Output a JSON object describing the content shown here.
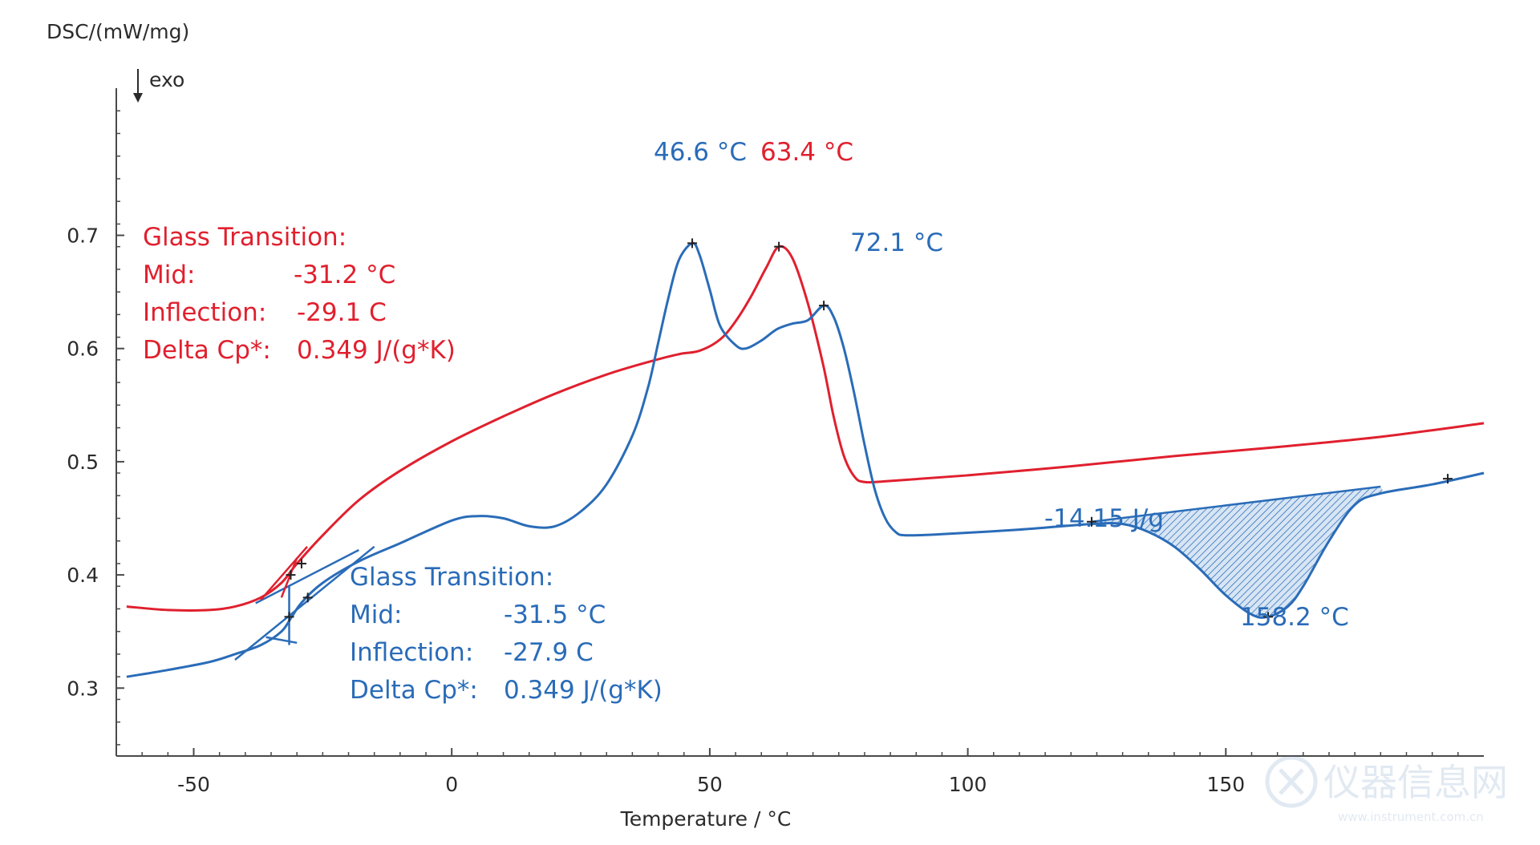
{
  "chart_data": {
    "type": "line",
    "ylabel": "DSC/(mW/mg)",
    "exo_label": "exo",
    "xlabel": "Temperature / °C",
    "xlim": [
      -65,
      200
    ],
    "ylim": [
      0.24,
      0.83
    ],
    "x_ticks": [
      -50,
      0,
      50,
      100,
      150
    ],
    "y_ticks": [
      0.3,
      0.4,
      0.5,
      0.6,
      0.7
    ],
    "y_tick_labels": [
      "0.3",
      "0.4",
      "0.5",
      "0.6",
      "0.7"
    ],
    "grid": false,
    "colors": {
      "red": "#e0202e",
      "blue": "#2a6cb8",
      "axis": "#4a4a4a"
    },
    "series": [
      {
        "color": "red",
        "x": [
          -63,
          -55,
          -47,
          -42,
          -37,
          -33,
          -30,
          -25,
          -18,
          -10,
          0,
          10,
          20,
          30,
          38,
          44,
          48,
          52,
          55,
          58,
          61,
          63.4,
          66,
          69,
          72,
          74,
          76,
          78,
          80,
          85,
          100,
          120,
          140,
          160,
          180,
          200
        ],
        "y": [
          0.372,
          0.369,
          0.369,
          0.372,
          0.38,
          0.393,
          0.41,
          0.435,
          0.466,
          0.492,
          0.518,
          0.54,
          0.56,
          0.577,
          0.588,
          0.595,
          0.598,
          0.608,
          0.624,
          0.646,
          0.672,
          0.69,
          0.68,
          0.64,
          0.585,
          0.54,
          0.505,
          0.487,
          0.482,
          0.483,
          0.488,
          0.496,
          0.505,
          0.513,
          0.522,
          0.534
        ]
      },
      {
        "color": "blue",
        "x": [
          -63,
          -55,
          -47,
          -42,
          -37,
          -33,
          -31,
          -29,
          -25,
          -18,
          -10,
          0,
          5,
          10,
          15,
          20,
          25,
          30,
          35,
          38,
          40,
          42,
          44,
          46.6,
          48,
          50,
          52,
          55,
          57,
          60,
          63,
          66,
          69,
          72.1,
          74,
          76,
          78,
          80,
          82,
          84,
          86,
          88,
          95,
          110,
          124,
          130,
          135,
          140,
          145,
          150,
          155,
          158.2,
          162,
          165,
          170,
          175,
          180,
          190,
          200
        ],
        "y": [
          0.31,
          0.316,
          0.323,
          0.33,
          0.338,
          0.35,
          0.363,
          0.376,
          0.393,
          0.412,
          0.428,
          0.448,
          0.452,
          0.45,
          0.443,
          0.443,
          0.456,
          0.48,
          0.523,
          0.565,
          0.605,
          0.645,
          0.678,
          0.693,
          0.683,
          0.652,
          0.62,
          0.603,
          0.6,
          0.607,
          0.617,
          0.622,
          0.625,
          0.638,
          0.628,
          0.6,
          0.56,
          0.515,
          0.475,
          0.45,
          0.438,
          0.435,
          0.436,
          0.44,
          0.445,
          0.445,
          0.438,
          0.425,
          0.405,
          0.382,
          0.365,
          0.363,
          0.372,
          0.39,
          0.43,
          0.462,
          0.472,
          0.48,
          0.49
        ]
      }
    ],
    "shaded_region": {
      "color": "blue",
      "x_range": [
        124,
        180
      ],
      "baseline": [
        [
          124,
          0.447
        ],
        [
          180,
          0.478
        ]
      ]
    },
    "annotations": {
      "red_glass_title": "Glass Transition:",
      "red_mid_label": "Mid:",
      "red_mid_value": "-31.2 °C",
      "red_infl_label": "Inflection:",
      "red_infl_value": "-29.1 C",
      "red_delta_label": "Delta Cp*:",
      "red_delta_value": "0.349 J/(g*K)",
      "blue_glass_title": "Glass Transition:",
      "blue_mid_label": "Mid:",
      "blue_mid_value": "-31.5 °C",
      "blue_infl_label": "Inflection:",
      "blue_infl_value": "-27.9 C",
      "blue_delta_label": "Delta Cp*:",
      "blue_delta_value": "0.349 J/(g*K)",
      "peak_blue_1": "46.6 °C",
      "peak_red": "63.4 °C",
      "peak_blue_2": "72.1 °C",
      "enthalpy": "-14.15 J/g",
      "peak_blue_3": "158.2 °C"
    },
    "markers": [
      {
        "x": 46.6,
        "y": 0.693,
        "color": "blue"
      },
      {
        "x": 63.4,
        "y": 0.69,
        "color": "red"
      },
      {
        "x": 72.1,
        "y": 0.638,
        "color": "blue"
      },
      {
        "x": 124,
        "y": 0.447,
        "color": "blue"
      },
      {
        "x": 158.2,
        "y": 0.363,
        "color": "blue"
      },
      {
        "x": 193,
        "y": 0.485,
        "color": "blue"
      },
      {
        "x": -31.2,
        "y": 0.4,
        "color": "red"
      },
      {
        "x": -29.1,
        "y": 0.41,
        "color": "red"
      },
      {
        "x": -31.5,
        "y": 0.363,
        "color": "blue"
      },
      {
        "x": -27.9,
        "y": 0.38,
        "color": "blue"
      }
    ]
  },
  "watermark": {
    "text": "仪器信息网",
    "subtext": "www.instrument.com.cn"
  }
}
